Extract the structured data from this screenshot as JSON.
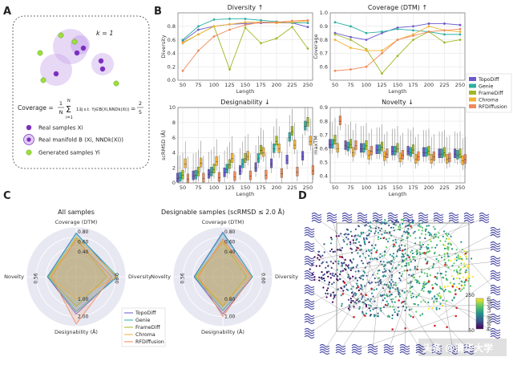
{
  "panels": {
    "A": {
      "letter": "A",
      "k_label": "k = 1",
      "formula_lhs": "Coverage =",
      "formula_frac_num": "1",
      "formula_frac_den": "N",
      "formula_sum": "Σ",
      "formula_sum_top": "N",
      "formula_sum_bottom": "i=1",
      "formula_indicator": "1∃j s.t. Yj∈B(Xi,NNDk(Xi))",
      "formula_rhs_num": "2",
      "formula_rhs_den": "5",
      "formula_eq": "=",
      "legend": [
        {
          "label": "Real samples Xi",
          "color": "#7b2fbf"
        },
        {
          "label": "Real manifold B (Xi, NNDk(Xi))",
          "color": "#b48fe0"
        },
        {
          "label": "Generated samples Yi",
          "color": "#9be03a"
        }
      ]
    },
    "B": {
      "letter": "B",
      "legend": [
        {
          "name": "TopoDiff",
          "color": "#6a5acd"
        },
        {
          "name": "Genie",
          "color": "#2bb0a0"
        },
        {
          "name": "FrameDiff",
          "color": "#a0b828"
        },
        {
          "name": "Chroma",
          "color": "#f2b233"
        },
        {
          "name": "RFDiffusion",
          "color": "#f08a5a"
        }
      ]
    },
    "C": {
      "letter": "C",
      "left_title": "All samples",
      "right_title": "Designable samples (scRMSD ≤ 2.0 Å)",
      "axes": {
        "top": "Coverage (DTM)",
        "right": "Diversity",
        "bottom": "Designability (Å)",
        "left": "Novelty"
      },
      "left_ticks": {
        "top": [
          "0.80",
          "0.60",
          "0.40"
        ],
        "right": "0.80",
        "bottom": [
          "1.00",
          "2.00"
        ],
        "left": "0.56"
      },
      "right_ticks": {
        "top": [
          "0.80",
          "0.60",
          "0.40"
        ],
        "right": "0.60",
        "bottom": [
          "0.80",
          "1.00"
        ],
        "left": "0.56"
      },
      "legend": [
        "TopoDiff",
        "Genie",
        "FrameDiff",
        "Chroma",
        "RFDiffusion"
      ]
    },
    "D": {
      "letter": "D",
      "colorbar_top": "250",
      "colorbar_bottom": "50",
      "colorbar_label": "Protein Length",
      "watermark": "头条 @清华大学"
    }
  },
  "chart_data": [
    {
      "type": "line",
      "title": "Diversity ↑",
      "xlabel": "Length",
      "ylabel": "Diversity",
      "x": [
        50,
        75,
        100,
        125,
        150,
        175,
        200,
        225,
        250
      ],
      "ylim": [
        0.0,
        1.0
      ],
      "yticks": [
        "0.0",
        "0.2",
        "0.4",
        "0.6",
        "0.8"
      ],
      "series": [
        {
          "name": "TopoDiff",
          "values": [
            0.58,
            0.75,
            0.8,
            0.83,
            0.84,
            0.85,
            0.85,
            0.85,
            0.79
          ]
        },
        {
          "name": "Genie",
          "values": [
            0.6,
            0.8,
            0.9,
            0.91,
            0.91,
            0.89,
            0.87,
            0.85,
            0.85
          ]
        },
        {
          "name": "FrameDiff",
          "values": [
            0.55,
            0.68,
            0.8,
            0.16,
            0.78,
            0.55,
            0.62,
            0.79,
            0.47
          ]
        },
        {
          "name": "Chroma",
          "values": [
            0.56,
            0.68,
            0.8,
            0.83,
            0.86,
            0.86,
            0.85,
            0.86,
            0.88
          ]
        },
        {
          "name": "RFDiffusion",
          "values": [
            0.14,
            0.44,
            0.65,
            0.75,
            0.82,
            0.86,
            0.86,
            0.88,
            0.89
          ]
        }
      ]
    },
    {
      "type": "line",
      "title": "Coverage (DTM) ↑",
      "xlabel": "Length",
      "ylabel": "Coverage",
      "x": [
        50,
        75,
        100,
        125,
        150,
        175,
        200,
        225,
        250
      ],
      "ylim": [
        0.5,
        1.0
      ],
      "yticks": [
        "0.6",
        "0.7",
        "0.8",
        "0.9",
        "1.0"
      ],
      "series": [
        {
          "name": "TopoDiff",
          "values": [
            0.85,
            0.82,
            0.8,
            0.85,
            0.89,
            0.9,
            0.92,
            0.92,
            0.91
          ]
        },
        {
          "name": "Genie",
          "values": [
            0.93,
            0.9,
            0.85,
            0.86,
            0.88,
            0.87,
            0.86,
            0.84,
            0.84
          ]
        },
        {
          "name": "FrameDiff",
          "values": [
            0.84,
            0.8,
            0.73,
            0.55,
            0.68,
            0.8,
            0.86,
            0.78,
            0.8
          ]
        },
        {
          "name": "Chroma",
          "values": [
            0.8,
            0.74,
            0.72,
            0.72,
            0.8,
            0.84,
            0.9,
            0.87,
            0.86
          ]
        },
        {
          "name": "RFDiffusion",
          "values": [
            0.57,
            0.58,
            0.6,
            0.7,
            0.8,
            0.83,
            0.86,
            0.87,
            0.88
          ]
        }
      ]
    },
    {
      "type": "box",
      "title": "Designability ↓",
      "xlabel": "Length",
      "ylabel": "scRMSD (Å)",
      "x": [
        50,
        75,
        100,
        125,
        150,
        175,
        200,
        225,
        250
      ],
      "ylim": [
        0,
        10
      ],
      "yticks": [
        "0",
        "2",
        "4",
        "6",
        "8",
        "10"
      ],
      "series": [
        {
          "name": "TopoDiff",
          "medians": [
            0.6,
            0.9,
            1.1,
            1.3,
            1.6,
            2.0,
            2.5,
            3.0,
            3.5
          ]
        },
        {
          "name": "Genie",
          "medians": [
            0.7,
            1.0,
            1.4,
            1.8,
            2.5,
            3.2,
            4.5,
            6.0,
            7.5
          ]
        },
        {
          "name": "FrameDiff",
          "medians": [
            1.0,
            1.4,
            1.8,
            2.4,
            3.2,
            4.3,
            5.5,
            6.8,
            8.0
          ]
        },
        {
          "name": "Chroma",
          "medians": [
            2.5,
            2.6,
            2.8,
            3.2,
            3.5,
            4.0,
            4.5,
            5.0,
            5.5
          ]
        },
        {
          "name": "RFDiffusion",
          "medians": [
            0.5,
            0.6,
            0.7,
            0.8,
            0.9,
            1.0,
            1.2,
            1.4,
            1.6
          ]
        }
      ]
    },
    {
      "type": "box",
      "title": "Novelty ↓",
      "xlabel": "Length",
      "ylabel": "maxTM",
      "x": [
        50,
        75,
        100,
        125,
        150,
        175,
        200,
        225,
        250
      ],
      "ylim": [
        0.35,
        0.9
      ],
      "yticks": [
        "0.4",
        "0.5",
        "0.6",
        "0.7",
        "0.8",
        "0.9"
      ],
      "series": [
        {
          "name": "TopoDiff",
          "medians": [
            0.63,
            0.62,
            0.6,
            0.59,
            0.58,
            0.58,
            0.57,
            0.56,
            0.56
          ]
        },
        {
          "name": "Genie",
          "medians": [
            0.63,
            0.61,
            0.6,
            0.59,
            0.58,
            0.57,
            0.57,
            0.56,
            0.55
          ]
        },
        {
          "name": "FrameDiff",
          "medians": [
            0.66,
            0.63,
            0.62,
            0.61,
            0.6,
            0.59,
            0.58,
            0.57,
            0.56
          ]
        },
        {
          "name": "Chroma",
          "medians": [
            0.6,
            0.57,
            0.55,
            0.54,
            0.53,
            0.52,
            0.52,
            0.52,
            0.51
          ]
        },
        {
          "name": "RFDiffusion",
          "medians": [
            0.8,
            0.62,
            0.58,
            0.56,
            0.55,
            0.54,
            0.54,
            0.53,
            0.52
          ]
        }
      ]
    },
    {
      "type": "radar",
      "title": "All samples",
      "axes": [
        "Coverage (DTM)",
        "Diversity",
        "Designability (Å)",
        "Novelty"
      ],
      "series": [
        {
          "name": "TopoDiff",
          "values": [
            0.88,
            0.8,
            0.75,
            0.58
          ]
        },
        {
          "name": "Genie",
          "values": [
            0.87,
            0.84,
            0.7,
            0.57
          ]
        },
        {
          "name": "FrameDiff",
          "values": [
            0.78,
            0.62,
            0.6,
            0.55
          ]
        },
        {
          "name": "Chroma",
          "values": [
            0.8,
            0.82,
            0.45,
            0.52
          ]
        },
        {
          "name": "RFDiffusion",
          "values": [
            0.74,
            0.72,
            0.95,
            0.5
          ]
        }
      ]
    },
    {
      "type": "radar",
      "title": "Designable samples (scRMSD ≤ 2.0 Å)",
      "axes": [
        "Coverage (DTM)",
        "Diversity",
        "Designability (Å)",
        "Novelty"
      ],
      "series": [
        {
          "name": "TopoDiff",
          "values": [
            0.9,
            0.6,
            0.75,
            0.58
          ]
        },
        {
          "name": "Genie",
          "values": [
            0.88,
            0.6,
            0.68,
            0.57
          ]
        },
        {
          "name": "FrameDiff",
          "values": [
            0.7,
            0.48,
            0.6,
            0.55
          ]
        },
        {
          "name": "Chroma",
          "values": [
            0.72,
            0.55,
            0.58,
            0.52
          ]
        },
        {
          "name": "RFDiffusion",
          "values": [
            0.76,
            0.58,
            0.8,
            0.5
          ]
        }
      ]
    }
  ]
}
